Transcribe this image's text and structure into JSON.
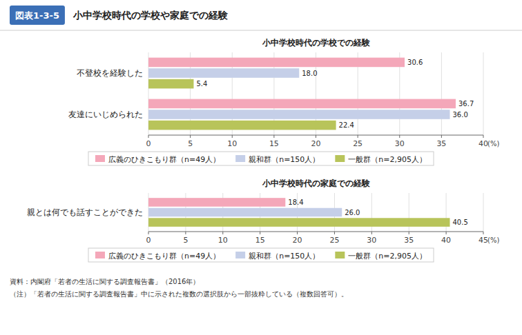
{
  "title": "小中学校時代の学校や家庭での経験",
  "annotations": [
    "図表1-3-5",
    "資料：内閣府「若者の生活に関する調査報告書」（2016年）",
    "（注）「若者の生活に関する調査報告書」中に示された複数の選択肢から一部抜粋している（複数回答可）。"
  ],
  "chart_data": [
    {
      "type": "bar",
      "orientation": "horizontal",
      "title": "小中学校時代の学校での経験",
      "xlabel": "(%)",
      "categories": [
        "不登校を経験した",
        "友達にいじめられた"
      ],
      "series": [
        {
          "name": "広義のひきこもり群（n=49人）",
          "color": "#f4a7b9",
          "values": [
            30.6,
            36.7
          ]
        },
        {
          "name": "親和群（n=150人）",
          "color": "#c5cfe8",
          "values": [
            18.0,
            36.0
          ],
          "value_labels": [
            "18.0",
            "36.0"
          ]
        },
        {
          "name": "一般群（n=2,905人）",
          "color": "#b8c45a",
          "values": [
            5.4,
            22.4
          ]
        }
      ],
      "xlim": [
        0,
        40
      ],
      "xticks": [
        0,
        5,
        10,
        15,
        20,
        25,
        30,
        35,
        40
      ],
      "grid": true,
      "data_labels": true,
      "legend": "bottom"
    },
    {
      "type": "bar",
      "orientation": "horizontal",
      "title": "小中学校時代の家庭での経験",
      "xlabel": "(%)",
      "categories": [
        "親とは何でも話すことができた"
      ],
      "series": [
        {
          "name": "広義のひきこもり群（n=49人）",
          "color": "#f4a7b9",
          "values": [
            18.4
          ]
        },
        {
          "name": "親和群（n=150人）",
          "color": "#c5cfe8",
          "values": [
            26.0
          ],
          "value_labels": [
            "26.0"
          ]
        },
        {
          "name": "一般群（n=2,905人）",
          "color": "#b8c45a",
          "values": [
            40.5
          ]
        }
      ],
      "xlim": [
        0,
        45
      ],
      "xticks": [
        0,
        5,
        10,
        15,
        20,
        25,
        30,
        35,
        40,
        45
      ],
      "grid": true,
      "data_labels": true,
      "legend": "bottom"
    }
  ]
}
